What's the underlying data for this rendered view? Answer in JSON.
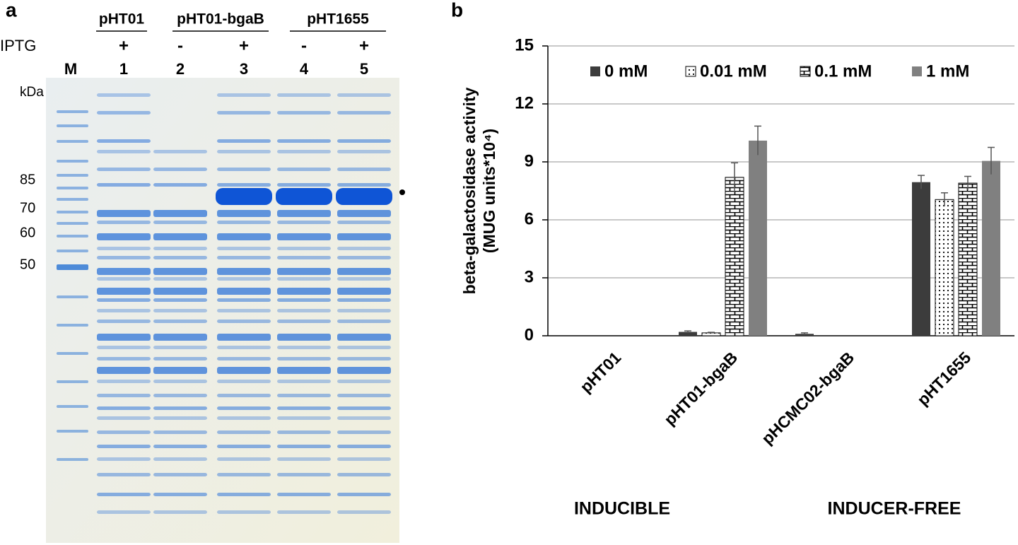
{
  "gel": {
    "panel_label": "a",
    "plasmids": [
      "pHT01",
      "pHT01-bgaB",
      "pHT1655"
    ],
    "iptg_label": "IPTG",
    "iptg": [
      "+",
      "-",
      "+",
      "-",
      "+"
    ],
    "lanes": [
      "M",
      "1",
      "2",
      "3",
      "4",
      "5"
    ],
    "unit": "kDa",
    "markers": [
      "85",
      "70",
      "60",
      "50"
    ]
  },
  "chart_data": {
    "type": "bar",
    "panel_label": "b",
    "ylabel": [
      "beta-galactosidase activity",
      "(MUG units*10⁴)"
    ],
    "categories": [
      "pHT01",
      "pHT01-bgaB",
      "pHCMC02-bgaB",
      "pHT1655"
    ],
    "group_labels": [
      "INDUCIBLE",
      "INDUCER-FREE"
    ],
    "series": [
      {
        "name": "0 mM",
        "color": "#3c3c3c",
        "values": [
          0,
          0.2,
          0.1,
          7.95
        ],
        "errors": [
          0,
          0.05,
          0.05,
          0.35
        ]
      },
      {
        "name": "0.01 mM",
        "color": "#000000",
        "pattern": "dots",
        "values": [
          0,
          0.15,
          null,
          7.05
        ],
        "errors": [
          0,
          0.03,
          null,
          0.35
        ]
      },
      {
        "name": "0.1 mM",
        "color": "#000000",
        "pattern": "bricks",
        "values": [
          0,
          8.2,
          null,
          7.9
        ],
        "errors": [
          0,
          0.75,
          null,
          0.35
        ]
      },
      {
        "name": "1 mM",
        "color": "#808080",
        "values": [
          0,
          10.1,
          null,
          9.05
        ],
        "errors": [
          0,
          0.75,
          null,
          0.7
        ]
      }
    ],
    "ylim": [
      0,
      15
    ],
    "yticks": [
      0,
      3,
      6,
      9,
      12,
      15
    ],
    "grid": true,
    "legend": "top"
  }
}
